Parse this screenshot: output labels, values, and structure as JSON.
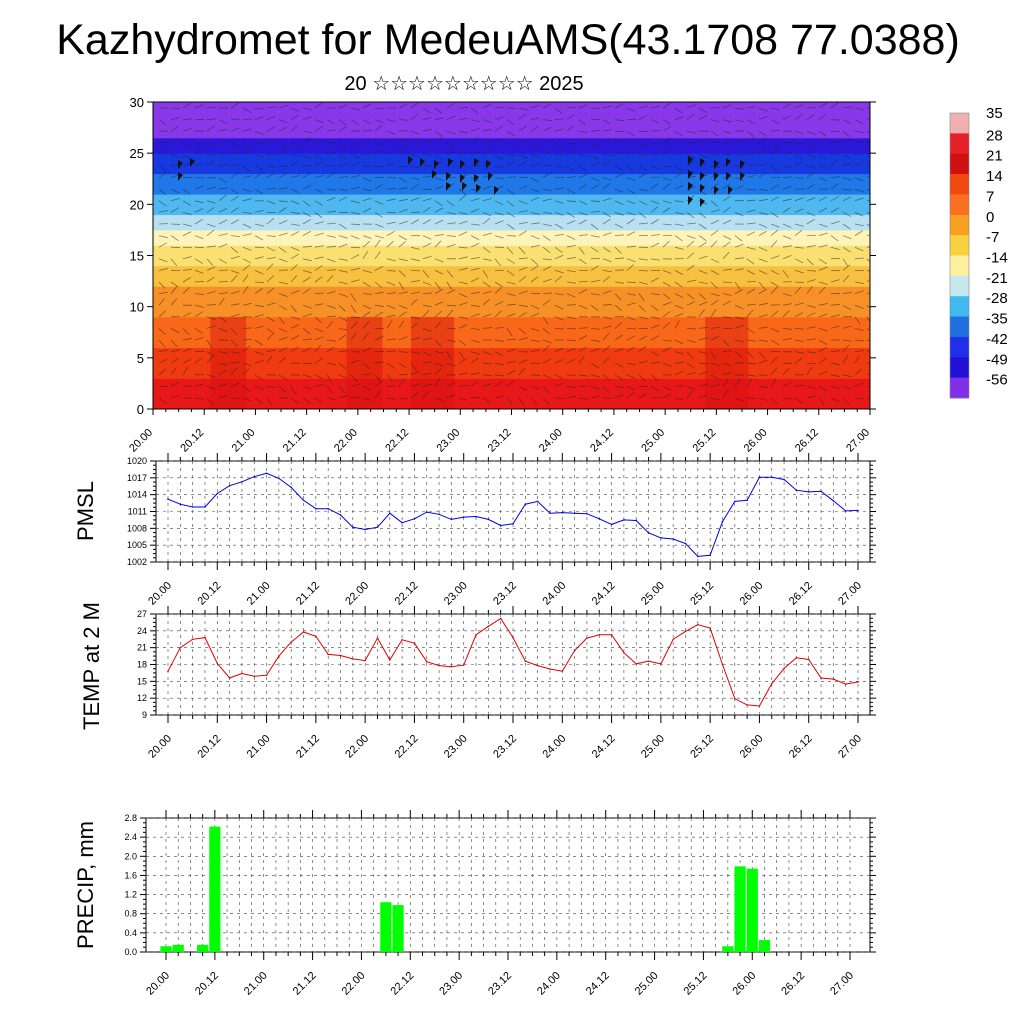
{
  "title": "Kazhydromet for MedeuAMS(43.1708 77.0388)",
  "subtitle": "20 ☆☆☆☆☆☆☆☆☆ 2025",
  "x_ticks": [
    "20.00",
    "20.12",
    "21.00",
    "21.12",
    "22.00",
    "22.12",
    "23.00",
    "23.12",
    "24.00",
    "24.12",
    "25.00",
    "25.12",
    "26.00",
    "26.12",
    "27.00"
  ],
  "colorbar": {
    "labels": [
      "35",
      "28",
      "21",
      "14",
      "7",
      "0",
      "-7",
      "-14",
      "-21",
      "-28",
      "-35",
      "-42",
      "-49",
      "-56"
    ],
    "colors": [
      "#f0b0b0",
      "#e8202a",
      "#d01010",
      "#f04a10",
      "#f87020",
      "#f8a020",
      "#f8d040",
      "#fef0a0",
      "#c8e8f0",
      "#40b8f0",
      "#2070e0",
      "#2030e8",
      "#2010d8",
      "#8030e8"
    ]
  },
  "chart_data": [
    {
      "type": "heatmap",
      "name": "cross-section",
      "ylabel": "",
      "ylim": [
        0,
        30
      ],
      "y_ticks": [
        "0",
        "5",
        "10",
        "15",
        "20",
        "25",
        "30"
      ],
      "x_ticks": [
        "20.00",
        "20.12",
        "21.00",
        "21.12",
        "22.00",
        "22.12",
        "23.00",
        "23.12",
        "24.00",
        "24.12",
        "25.00",
        "25.12",
        "26.00",
        "26.12",
        "27.00"
      ],
      "color_bands": [
        {
          "from": 0,
          "to": 3,
          "value": 30,
          "color": "#e81818"
        },
        {
          "from": 3,
          "to": 6,
          "value": 24,
          "color": "#f03a10"
        },
        {
          "from": 6,
          "to": 9,
          "value": 17,
          "color": "#f86818"
        },
        {
          "from": 9,
          "to": 12,
          "value": 10,
          "color": "#f89028"
        },
        {
          "from": 12,
          "to": 14,
          "value": 3,
          "color": "#f8c040"
        },
        {
          "from": 14,
          "to": 16,
          "value": -4,
          "color": "#fae070"
        },
        {
          "from": 16,
          "to": 17.5,
          "value": -11,
          "color": "#fef4b8"
        },
        {
          "from": 17.5,
          "to": 19,
          "value": -20,
          "color": "#b8e0f0"
        },
        {
          "from": 19,
          "to": 21,
          "value": -28,
          "color": "#50b8f0"
        },
        {
          "from": 21,
          "to": 23,
          "value": -35,
          "color": "#2078e8"
        },
        {
          "from": 23,
          "to": 25,
          "value": -45,
          "color": "#1838e0"
        },
        {
          "from": 25,
          "to": 26.5,
          "value": -52,
          "color": "#2a18d8"
        },
        {
          "from": 26.5,
          "to": 30,
          "value": -58,
          "color": "#8838e8"
        }
      ]
    },
    {
      "type": "line",
      "name": "pmsl",
      "ylabel": "PMSL",
      "ylim": [
        1002,
        1020
      ],
      "y_ticks": [
        "1020",
        "1017",
        "1014",
        "1011",
        "1008",
        "1005",
        "1002"
      ],
      "color": "#0000e0",
      "x_ticks": [
        "20.00",
        "20.12",
        "21.00",
        "21.12",
        "22.00",
        "22.12",
        "23.00",
        "23.12",
        "24.00",
        "24.12",
        "25.00",
        "25.12",
        "26.00",
        "26.12",
        "27.00"
      ],
      "values": [
        1013.2,
        1012.3,
        1011.8,
        1011.8,
        1014.2,
        1015.6,
        1016.3,
        1017.2,
        1017.8,
        1016.9,
        1015.3,
        1013.0,
        1011.5,
        1011.5,
        1010.4,
        1008.2,
        1007.8,
        1008.2,
        1010.7,
        1009.0,
        1009.7,
        1010.9,
        1010.5,
        1009.6,
        1010.0,
        1010.1,
        1009.6,
        1008.5,
        1008.8,
        1012.3,
        1012.8,
        1010.7,
        1010.8,
        1010.7,
        1010.6,
        1009.7,
        1008.7,
        1009.5,
        1009.4,
        1007.2,
        1006.3,
        1006.1,
        1005.3,
        1003.0,
        1003.2,
        1009.2,
        1012.8,
        1013.0,
        1017.1,
        1017.1,
        1016.7,
        1014.8,
        1014.5,
        1014.6,
        1012.9,
        1011.1,
        1011.2
      ]
    },
    {
      "type": "line",
      "name": "temperature",
      "ylabel": "TEMP at 2 M",
      "ylim": [
        9,
        27
      ],
      "y_ticks": [
        "27",
        "24",
        "21",
        "18",
        "15",
        "12",
        "9"
      ],
      "color": "#e00000",
      "x_ticks": [
        "20.00",
        "20.12",
        "21.00",
        "21.12",
        "22.00",
        "22.12",
        "23.00",
        "23.12",
        "24.00",
        "24.12",
        "25.00",
        "25.12",
        "26.00",
        "26.12",
        "27.00"
      ],
      "values": [
        16.8,
        21.0,
        22.5,
        22.8,
        18.2,
        15.6,
        16.4,
        15.9,
        16.1,
        19.5,
        22.0,
        23.8,
        23.0,
        19.8,
        19.6,
        19.0,
        18.7,
        22.7,
        18.8,
        22.4,
        21.8,
        18.5,
        17.8,
        17.6,
        17.9,
        23.3,
        24.8,
        26.2,
        22.8,
        18.6,
        17.8,
        17.2,
        16.8,
        20.5,
        22.7,
        23.3,
        23.3,
        20.1,
        18.1,
        18.6,
        18.1,
        22.5,
        23.9,
        25.1,
        24.5,
        18.0,
        11.9,
        10.8,
        10.6,
        14.6,
        17.3,
        19.2,
        18.9,
        15.6,
        15.4,
        14.5,
        14.9
      ]
    },
    {
      "type": "bar",
      "name": "precipitation",
      "ylabel": "PRECIP, mm",
      "ylim": [
        0,
        2.8
      ],
      "y_ticks": [
        "2.8",
        "2.4",
        "2.0",
        "1.6",
        "1.2",
        "0.8",
        "0.4",
        "0.0"
      ],
      "color": "#00ff00",
      "x_ticks": [
        "20.00",
        "20.12",
        "21.00",
        "21.12",
        "22.00",
        "22.12",
        "23.00",
        "23.12",
        "24.00",
        "24.12",
        "25.00",
        "25.12",
        "26.00",
        "26.12",
        "27.00"
      ],
      "values": [
        0.12,
        0.15,
        0.0,
        0.15,
        2.62,
        0,
        0,
        0,
        0,
        0,
        0,
        0,
        0,
        0,
        0,
        0,
        0,
        0,
        1.04,
        0.98,
        0,
        0,
        0,
        0,
        0,
        0,
        0,
        0,
        0,
        0,
        0,
        0,
        0,
        0,
        0,
        0,
        0,
        0,
        0,
        0,
        0,
        0,
        0,
        0,
        0,
        0,
        0.12,
        1.79,
        1.74,
        0.25,
        0,
        0,
        0,
        0,
        0,
        0,
        0
      ]
    }
  ]
}
